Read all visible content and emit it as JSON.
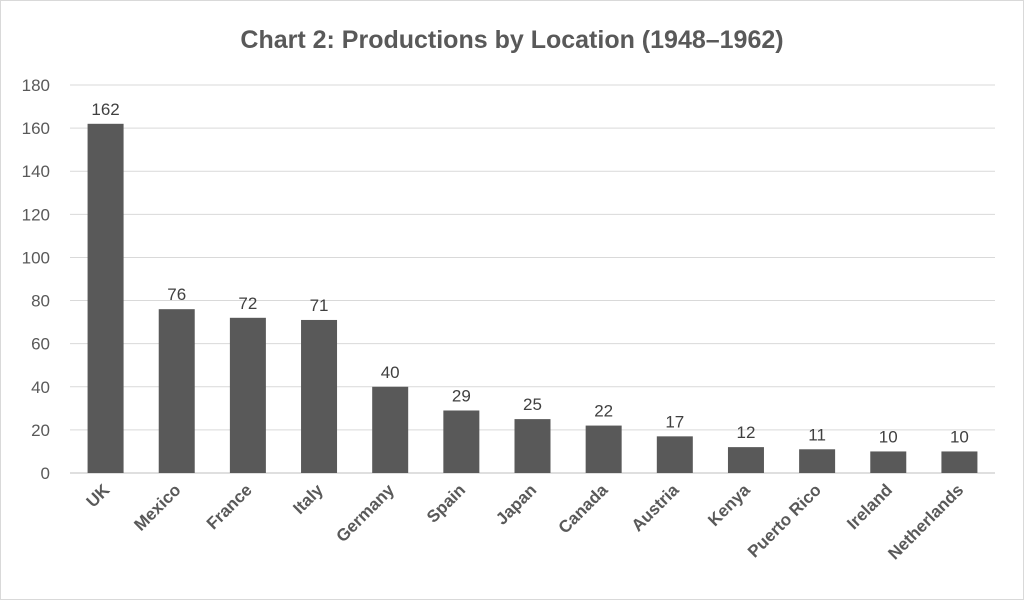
{
  "chart_data": {
    "type": "bar",
    "title": "Chart 2: Productions by Location (1948–1962)",
    "xlabel": "",
    "ylabel": "",
    "categories": [
      "UK",
      "Mexico",
      "France",
      "Italy",
      "Germany",
      "Spain",
      "Japan",
      "Canada",
      "Austria",
      "Kenya",
      "Puerto Rico",
      "Ireland",
      "Netherlands"
    ],
    "values": [
      162,
      76,
      72,
      71,
      40,
      29,
      25,
      22,
      17,
      12,
      11,
      10,
      10
    ],
    "ylim": [
      0,
      180
    ],
    "yticks": [
      0,
      20,
      40,
      60,
      80,
      100,
      120,
      140,
      160,
      180
    ],
    "grid": true,
    "bar_color": "#595959",
    "data_labels": true
  }
}
